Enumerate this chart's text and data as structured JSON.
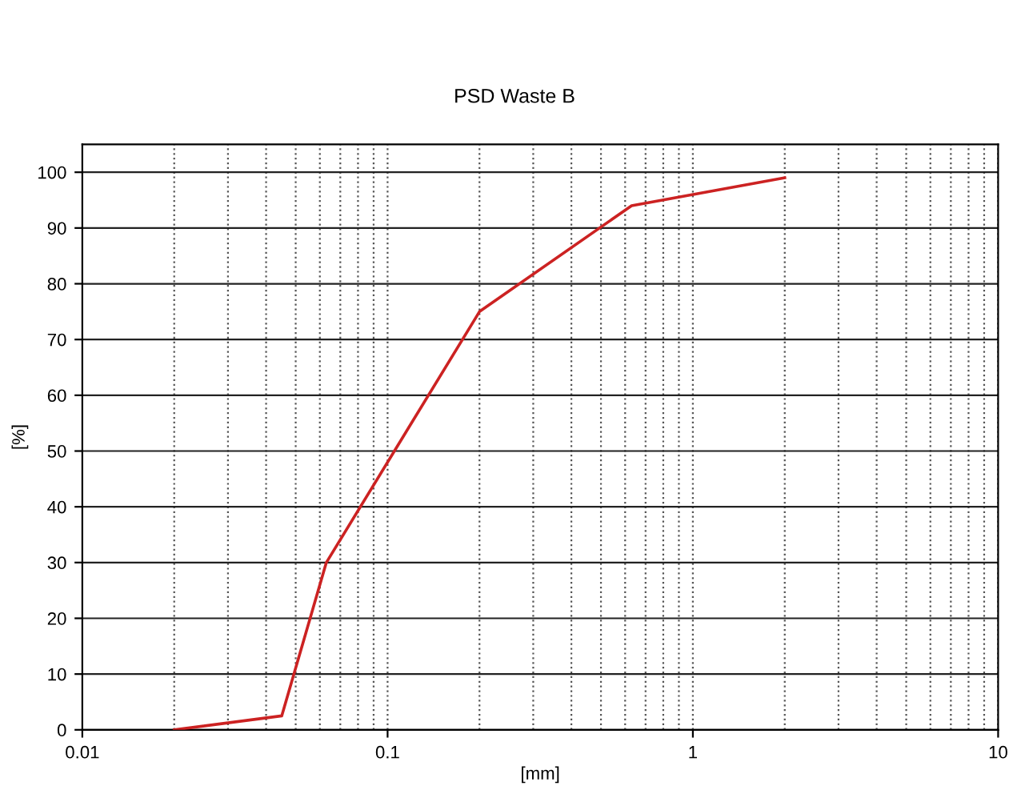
{
  "chart_data": {
    "type": "line",
    "title": "PSD Waste B",
    "xlabel": "[mm]",
    "ylabel": "[%]",
    "log": "x",
    "x": [
      0.02,
      0.045,
      0.063,
      0.2,
      0.63,
      2
    ],
    "series": [
      {
        "color": "#cc2222",
        "values": [
          0,
          2.5,
          30,
          75,
          94,
          99
        ]
      }
    ],
    "xlim": [
      0.01,
      10
    ],
    "xticks": [
      0.01,
      0.1,
      1,
      10
    ],
    "ylim": [
      0,
      105
    ],
    "yticks": [
      0,
      10,
      20,
      30,
      40,
      50,
      60,
      70,
      80,
      90,
      100
    ],
    "grid": true,
    "marker": "none",
    "line_style": "solid"
  }
}
